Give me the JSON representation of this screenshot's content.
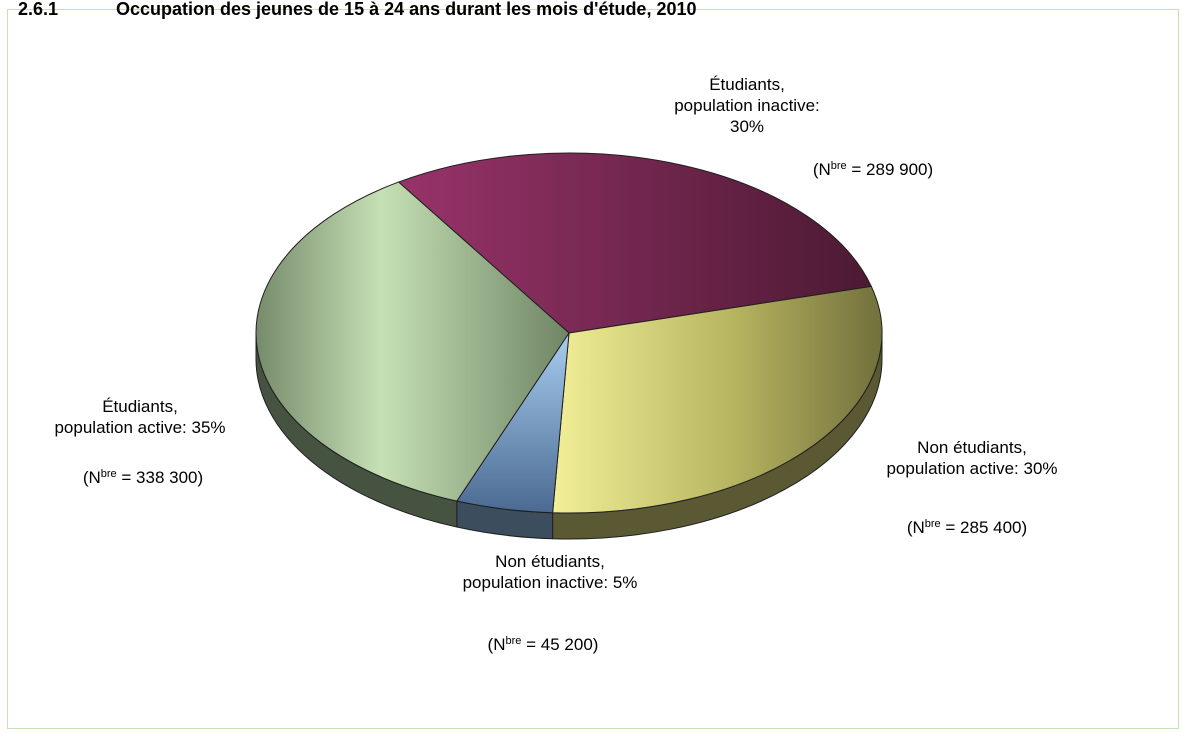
{
  "title": {
    "number": "2.6.1",
    "text": "Occupation des jeunes de 15 à 24 ans durant les mois d'étude, 2010"
  },
  "chart_data": {
    "type": "pie",
    "three_d": true,
    "legend": "none",
    "slices": [
      {
        "label_line1": "Étudiants,",
        "label_line2": "population inactive:",
        "label_line3": "30%",
        "percent": 30,
        "count_prefix": "(N",
        "count_sup": "bre",
        "count_value": " = 289 900)",
        "value": 289900,
        "color": "#8e2c5f"
      },
      {
        "label_line1": "Non étudiants,",
        "label_line2": "population active: 30%",
        "percent": 30,
        "count_prefix": "(N",
        "count_sup": "bre",
        "count_value": " = 285 400)",
        "value": 285400,
        "color": "#d7d47c"
      },
      {
        "label_line1": "Non étudiants,",
        "label_line2": "population inactive: 5%",
        "percent": 5,
        "count_prefix": "(N",
        "count_sup": "bre",
        "count_value": " = 45 200)",
        "value": 45200,
        "color": "#8fb8e0"
      },
      {
        "label_line1": "Étudiants,",
        "label_line2": "population active: 35%",
        "percent": 35,
        "count_prefix": "(N",
        "count_sup": "bre",
        "count_value": " = 338 300)",
        "value": 338300,
        "color": "#a9c59a"
      }
    ]
  }
}
